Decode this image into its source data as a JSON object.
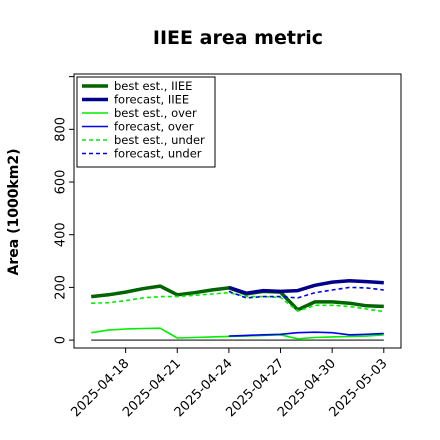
{
  "chart_data": {
    "type": "line",
    "title": "IIEE area metric",
    "xlabel": "",
    "ylabel": "Area (1000km2)",
    "ylim": [
      -30,
      1010
    ],
    "yticks": [
      0,
      200,
      400,
      600,
      800
    ],
    "x": [
      "2025-04-16",
      "2025-04-17",
      "2025-04-18",
      "2025-04-19",
      "2025-04-20",
      "2025-04-21",
      "2025-04-22",
      "2025-04-23",
      "2025-04-24",
      "2025-04-25",
      "2025-04-26",
      "2025-04-27",
      "2025-04-28",
      "2025-04-29",
      "2025-04-30",
      "2025-05-01",
      "2025-05-02",
      "2025-05-03"
    ],
    "xticks": [
      "2025-04-18",
      "2025-04-21",
      "2025-04-24",
      "2025-04-27",
      "2025-04-30",
      "2025-05-03"
    ],
    "highlighted_xtick": "2025-04-24",
    "highlight_color": "#228B22",
    "grid": false,
    "legend_position": "top-left",
    "series": [
      {
        "name": "best est., IIEE",
        "color": "#006400",
        "width": 3.5,
        "dash": "",
        "x": [
          "2025-04-16",
          "2025-04-17",
          "2025-04-18",
          "2025-04-19",
          "2025-04-20",
          "2025-04-21",
          "2025-04-22",
          "2025-04-23",
          "2025-04-24",
          "2025-04-25",
          "2025-04-26",
          "2025-04-27",
          "2025-04-28",
          "2025-04-29",
          "2025-04-30",
          "2025-05-01",
          "2025-05-02",
          "2025-05-03"
        ],
        "values": [
          165,
          172,
          182,
          195,
          205,
          172,
          180,
          190,
          198,
          175,
          185,
          182,
          115,
          145,
          145,
          140,
          130,
          128
        ]
      },
      {
        "name": "forecast, IIEE",
        "color": "#00008B",
        "width": 3.5,
        "dash": "",
        "x": [
          "2025-04-24",
          "2025-04-25",
          "2025-04-26",
          "2025-04-27",
          "2025-04-28",
          "2025-04-29",
          "2025-04-30",
          "2025-05-01",
          "2025-05-02",
          "2025-05-03"
        ],
        "values": [
          200,
          178,
          188,
          185,
          188,
          208,
          220,
          225,
          222,
          218
        ]
      },
      {
        "name": "best est., over",
        "color": "#00EE00",
        "width": 1.6,
        "dash": "",
        "x": [
          "2025-04-16",
          "2025-04-17",
          "2025-04-18",
          "2025-04-19",
          "2025-04-20",
          "2025-04-21",
          "2025-04-22",
          "2025-04-23",
          "2025-04-24",
          "2025-04-25",
          "2025-04-26",
          "2025-04-27",
          "2025-04-28",
          "2025-04-29",
          "2025-04-30",
          "2025-05-01",
          "2025-05-02",
          "2025-05-03"
        ],
        "values": [
          28,
          38,
          42,
          44,
          45,
          8,
          10,
          12,
          14,
          15,
          18,
          20,
          5,
          10,
          12,
          14,
          15,
          20
        ]
      },
      {
        "name": "forecast, over",
        "color": "#0000EE",
        "width": 1.6,
        "dash": "",
        "x": [
          "2025-04-24",
          "2025-04-25",
          "2025-04-26",
          "2025-04-27",
          "2025-04-28",
          "2025-04-29",
          "2025-04-30",
          "2025-05-01",
          "2025-05-02",
          "2025-05-03"
        ],
        "values": [
          15,
          18,
          20,
          22,
          28,
          30,
          28,
          20,
          22,
          25
        ]
      },
      {
        "name": "best est., under",
        "color": "#00EE00",
        "width": 1.6,
        "dash": "4 3",
        "x": [
          "2025-04-16",
          "2025-04-17",
          "2025-04-18",
          "2025-04-19",
          "2025-04-20",
          "2025-04-21",
          "2025-04-22",
          "2025-04-23",
          "2025-04-24",
          "2025-04-25",
          "2025-04-26",
          "2025-04-27",
          "2025-04-28",
          "2025-04-29",
          "2025-04-30",
          "2025-05-01",
          "2025-05-02",
          "2025-05-03"
        ],
        "values": [
          140,
          142,
          150,
          160,
          165,
          165,
          170,
          175,
          180,
          165,
          165,
          162,
          110,
          132,
          132,
          128,
          118,
          108
        ]
      },
      {
        "name": "forecast, under",
        "color": "#0000EE",
        "width": 1.6,
        "dash": "4 3",
        "x": [
          "2025-04-24",
          "2025-04-25",
          "2025-04-26",
          "2025-04-27",
          "2025-04-28",
          "2025-04-29",
          "2025-04-30",
          "2025-05-01",
          "2025-05-02",
          "2025-05-03"
        ],
        "values": [
          185,
          160,
          165,
          165,
          160,
          180,
          190,
          200,
          198,
          190
        ]
      }
    ],
    "zero_line": {
      "color": "#555555",
      "value": 0
    }
  }
}
